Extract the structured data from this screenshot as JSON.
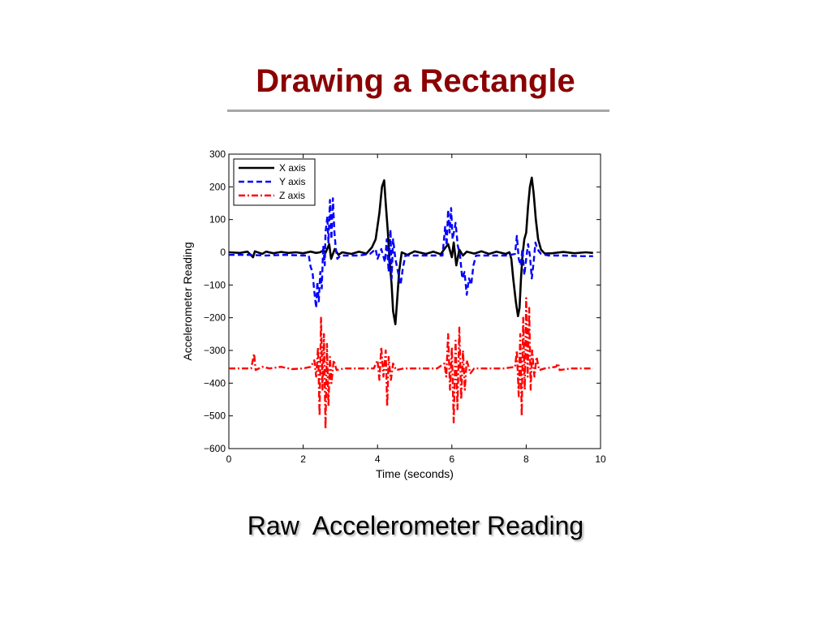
{
  "slide": {
    "title": "Drawing a Rectangle",
    "caption": "Raw  Accelerometer Reading"
  },
  "colors": {
    "title": "#8b0000",
    "x_axis_series": "#000000",
    "y_axis_series": "#0000ff",
    "z_axis_series": "#ff0000"
  },
  "chart_data": {
    "type": "line",
    "title": "",
    "xlabel": "Time (seconds)",
    "ylabel": "Accelerometer Reading",
    "xlim": [
      0,
      10
    ],
    "ylim": [
      -600,
      300
    ],
    "xticks": [
      0,
      2,
      4,
      6,
      8,
      10
    ],
    "yticks": [
      300,
      200,
      100,
      0,
      -100,
      -200,
      -300,
      -400,
      -500,
      -600
    ],
    "ytick_labels": [
      "300",
      "200",
      "100",
      "0",
      "−100",
      "−200",
      "−300",
      "−400",
      "−500",
      "−600"
    ],
    "grid": false,
    "legend_position": "top-left",
    "series": [
      {
        "name": "X axis",
        "style": "solid",
        "color": "#000000",
        "points": [
          [
            0,
            0
          ],
          [
            0.3,
            -2
          ],
          [
            0.5,
            2
          ],
          [
            0.65,
            -15
          ],
          [
            0.7,
            3
          ],
          [
            0.9,
            -5
          ],
          [
            1.0,
            2
          ],
          [
            1.2,
            -3
          ],
          [
            1.4,
            1
          ],
          [
            1.6,
            -2
          ],
          [
            1.8,
            0
          ],
          [
            2.0,
            -3
          ],
          [
            2.2,
            2
          ],
          [
            2.35,
            -2
          ],
          [
            2.45,
            0
          ],
          [
            2.55,
            6
          ],
          [
            2.6,
            -2
          ],
          [
            2.7,
            25
          ],
          [
            2.75,
            -20
          ],
          [
            2.85,
            10
          ],
          [
            2.95,
            -8
          ],
          [
            3.05,
            0
          ],
          [
            3.3,
            -5
          ],
          [
            3.5,
            2
          ],
          [
            3.7,
            -4
          ],
          [
            3.85,
            15
          ],
          [
            3.95,
            40
          ],
          [
            4.05,
            120
          ],
          [
            4.12,
            200
          ],
          [
            4.18,
            220
          ],
          [
            4.22,
            150
          ],
          [
            4.28,
            60
          ],
          [
            4.32,
            -20
          ],
          [
            4.38,
            -100
          ],
          [
            4.42,
            -180
          ],
          [
            4.48,
            -220
          ],
          [
            4.52,
            -160
          ],
          [
            4.58,
            -60
          ],
          [
            4.65,
            0
          ],
          [
            4.8,
            -8
          ],
          [
            5.0,
            3
          ],
          [
            5.3,
            -5
          ],
          [
            5.5,
            2
          ],
          [
            5.7,
            -6
          ],
          [
            5.8,
            10
          ],
          [
            5.9,
            25
          ],
          [
            6.0,
            -15
          ],
          [
            6.05,
            30
          ],
          [
            6.12,
            -40
          ],
          [
            6.2,
            8
          ],
          [
            6.3,
            -10
          ],
          [
            6.4,
            2
          ],
          [
            6.6,
            -4
          ],
          [
            6.8,
            3
          ],
          [
            7.0,
            -5
          ],
          [
            7.2,
            2
          ],
          [
            7.45,
            -5
          ],
          [
            7.55,
            0
          ],
          [
            7.6,
            -20
          ],
          [
            7.65,
            -80
          ],
          [
            7.72,
            -150
          ],
          [
            7.78,
            -195
          ],
          [
            7.82,
            -170
          ],
          [
            7.86,
            -80
          ],
          [
            7.9,
            -10
          ],
          [
            7.95,
            40
          ],
          [
            8.0,
            60
          ],
          [
            8.05,
            140
          ],
          [
            8.1,
            200
          ],
          [
            8.15,
            228
          ],
          [
            8.2,
            180
          ],
          [
            8.26,
            100
          ],
          [
            8.32,
            40
          ],
          [
            8.4,
            8
          ],
          [
            8.5,
            -4
          ],
          [
            8.7,
            -3
          ],
          [
            9.0,
            1
          ],
          [
            9.3,
            -3
          ],
          [
            9.6,
            0
          ],
          [
            9.8,
            -2
          ]
        ]
      },
      {
        "name": "Y axis",
        "style": "dashed",
        "color": "#0000ff",
        "points": [
          [
            0,
            -8
          ],
          [
            0.5,
            -8
          ],
          [
            1.0,
            -10
          ],
          [
            1.5,
            -8
          ],
          [
            2.0,
            -10
          ],
          [
            2.15,
            -10
          ],
          [
            2.2,
            -45
          ],
          [
            2.25,
            -60
          ],
          [
            2.3,
            -120
          ],
          [
            2.35,
            -170
          ],
          [
            2.38,
            -90
          ],
          [
            2.42,
            -150
          ],
          [
            2.46,
            -60
          ],
          [
            2.5,
            -110
          ],
          [
            2.54,
            20
          ],
          [
            2.58,
            -40
          ],
          [
            2.6,
            60
          ],
          [
            2.65,
            110
          ],
          [
            2.68,
            30
          ],
          [
            2.72,
            160
          ],
          [
            2.76,
            40
          ],
          [
            2.8,
            165
          ],
          [
            2.84,
            60
          ],
          [
            2.88,
            10
          ],
          [
            2.92,
            -20
          ],
          [
            3.0,
            -10
          ],
          [
            3.5,
            -10
          ],
          [
            3.8,
            -5
          ],
          [
            3.95,
            10
          ],
          [
            4.0,
            -20
          ],
          [
            4.1,
            10
          ],
          [
            4.2,
            -30
          ],
          [
            4.25,
            40
          ],
          [
            4.3,
            -60
          ],
          [
            4.35,
            70
          ],
          [
            4.38,
            -80
          ],
          [
            4.42,
            40
          ],
          [
            4.48,
            -20
          ],
          [
            4.55,
            -60
          ],
          [
            4.62,
            -100
          ],
          [
            4.68,
            -50
          ],
          [
            4.75,
            -10
          ],
          [
            5.0,
            -10
          ],
          [
            5.5,
            -10
          ],
          [
            5.75,
            -10
          ],
          [
            5.82,
            80
          ],
          [
            5.86,
            20
          ],
          [
            5.9,
            130
          ],
          [
            5.94,
            60
          ],
          [
            5.98,
            135
          ],
          [
            6.02,
            40
          ],
          [
            6.1,
            90
          ],
          [
            6.16,
            20
          ],
          [
            6.22,
            -10
          ],
          [
            6.28,
            -80
          ],
          [
            6.34,
            -60
          ],
          [
            6.4,
            -130
          ],
          [
            6.46,
            -80
          ],
          [
            6.52,
            -100
          ],
          [
            6.58,
            -40
          ],
          [
            6.65,
            -10
          ],
          [
            7.0,
            -10
          ],
          [
            7.5,
            -10
          ],
          [
            7.7,
            -5
          ],
          [
            7.75,
            50
          ],
          [
            7.8,
            -20
          ],
          [
            7.85,
            -40
          ],
          [
            7.9,
            10
          ],
          [
            7.95,
            -70
          ],
          [
            8.0,
            -20
          ],
          [
            8.05,
            25
          ],
          [
            8.1,
            -10
          ],
          [
            8.15,
            -80
          ],
          [
            8.2,
            -30
          ],
          [
            8.25,
            30
          ],
          [
            8.3,
            10
          ],
          [
            8.4,
            -5
          ],
          [
            8.6,
            -10
          ],
          [
            9.0,
            -10
          ],
          [
            9.5,
            -12
          ],
          [
            9.8,
            -12
          ]
        ]
      },
      {
        "name": "Z axis",
        "style": "dashdot",
        "color": "#ff0000",
        "points": [
          [
            0,
            -355
          ],
          [
            0.3,
            -355
          ],
          [
            0.6,
            -355
          ],
          [
            0.68,
            -310
          ],
          [
            0.72,
            -360
          ],
          [
            0.9,
            -350
          ],
          [
            1.1,
            -355
          ],
          [
            1.4,
            -350
          ],
          [
            1.7,
            -357
          ],
          [
            2.0,
            -355
          ],
          [
            2.2,
            -350
          ],
          [
            2.3,
            -330
          ],
          [
            2.35,
            -380
          ],
          [
            2.4,
            -290
          ],
          [
            2.44,
            -500
          ],
          [
            2.48,
            -200
          ],
          [
            2.52,
            -420
          ],
          [
            2.56,
            -250
          ],
          [
            2.6,
            -540
          ],
          [
            2.64,
            -280
          ],
          [
            2.68,
            -470
          ],
          [
            2.72,
            -320
          ],
          [
            2.76,
            -400
          ],
          [
            2.82,
            -330
          ],
          [
            2.9,
            -360
          ],
          [
            3.1,
            -355
          ],
          [
            3.5,
            -355
          ],
          [
            3.9,
            -355
          ],
          [
            4.0,
            -330
          ],
          [
            4.05,
            -390
          ],
          [
            4.1,
            -290
          ],
          [
            4.16,
            -380
          ],
          [
            4.22,
            -300
          ],
          [
            4.26,
            -470
          ],
          [
            4.3,
            -320
          ],
          [
            4.36,
            -390
          ],
          [
            4.42,
            -340
          ],
          [
            4.5,
            -360
          ],
          [
            4.7,
            -355
          ],
          [
            5.2,
            -355
          ],
          [
            5.6,
            -355
          ],
          [
            5.8,
            -340
          ],
          [
            5.85,
            -380
          ],
          [
            5.9,
            -250
          ],
          [
            5.95,
            -420
          ],
          [
            6.0,
            -290
          ],
          [
            6.05,
            -520
          ],
          [
            6.1,
            -270
          ],
          [
            6.15,
            -480
          ],
          [
            6.2,
            -230
          ],
          [
            6.25,
            -450
          ],
          [
            6.3,
            -300
          ],
          [
            6.35,
            -420
          ],
          [
            6.4,
            -330
          ],
          [
            6.5,
            -370
          ],
          [
            6.6,
            -355
          ],
          [
            7.0,
            -355
          ],
          [
            7.4,
            -355
          ],
          [
            7.7,
            -350
          ],
          [
            7.75,
            -300
          ],
          [
            7.8,
            -440
          ],
          [
            7.84,
            -250
          ],
          [
            7.88,
            -500
          ],
          [
            7.92,
            -200
          ],
          [
            7.96,
            -420
          ],
          [
            8.0,
            -140
          ],
          [
            8.04,
            -380
          ],
          [
            8.08,
            -170
          ],
          [
            8.12,
            -420
          ],
          [
            8.16,
            -300
          ],
          [
            8.22,
            -380
          ],
          [
            8.28,
            -320
          ],
          [
            8.35,
            -360
          ],
          [
            8.5,
            -355
          ],
          [
            8.8,
            -350
          ],
          [
            8.86,
            -340
          ],
          [
            8.9,
            -360
          ],
          [
            9.2,
            -355
          ],
          [
            9.5,
            -355
          ],
          [
            9.8,
            -355
          ]
        ]
      }
    ]
  }
}
